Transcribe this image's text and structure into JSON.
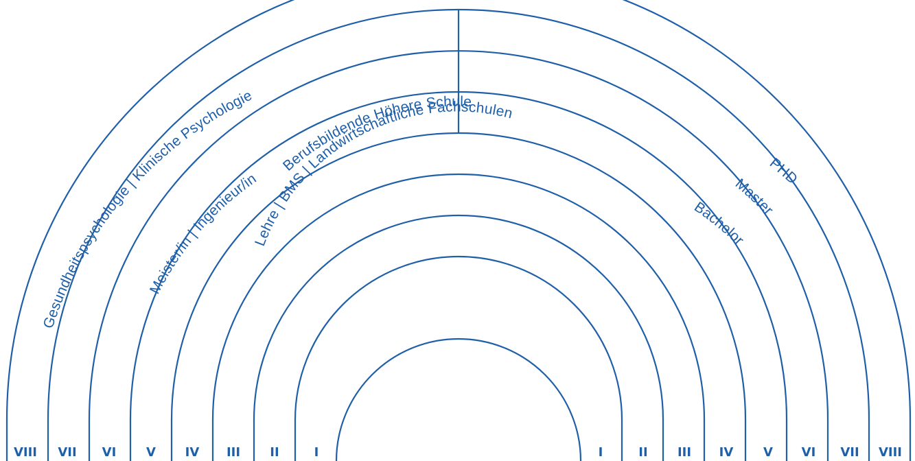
{
  "levels": [
    {
      "numeral": "I"
    },
    {
      "numeral": "II"
    },
    {
      "numeral": "III"
    },
    {
      "numeral": "IV"
    },
    {
      "numeral": "V"
    },
    {
      "numeral": "VI"
    },
    {
      "numeral": "VII"
    },
    {
      "numeral": "VIII"
    }
  ],
  "labels": {
    "lehre": "Lehre | BMS | Landwirtschaftliche Fachschulen",
    "bhs": "Berufsbildende Höhere Schule",
    "meister": "Meister/in | Ingenieur/in",
    "gesundheit": "Gesundheitspsychologie | Klinische Psychologie",
    "bachelor": "Bachelor",
    "master": "Master",
    "phd": "PHD"
  },
  "colors": {
    "line": "#1f5fa8",
    "background": "#ffffff"
  }
}
